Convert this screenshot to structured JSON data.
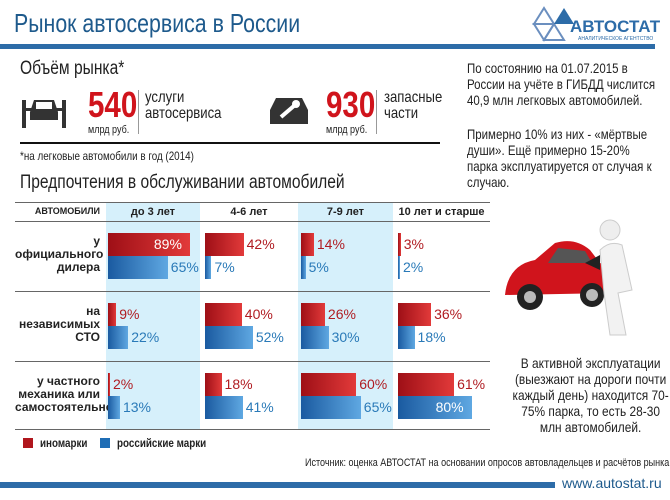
{
  "header": {
    "title": "Рынок автосервиса в России",
    "logo_name": "АВТОСТАТ",
    "logo_sub": "АНАЛИТИЧЕСКОЕ АГЕНТСТВО"
  },
  "market": {
    "title": "Объём рынка*",
    "items": [
      {
        "value": "540",
        "unit": "млрд руб.",
        "label1": "услуги",
        "label2": "автосервиса",
        "icon": "car-lift-icon"
      },
      {
        "value": "930",
        "unit": "млрд руб.",
        "label1": "запасные",
        "label2": "части",
        "icon": "car-wrench-icon"
      }
    ],
    "footnote": "*на легковые автомобили в год (2014)"
  },
  "colors": {
    "foreign": "#c0181f",
    "russian": "#1f6db5",
    "accent": "#d0141c",
    "brand": "#2d6ca8"
  },
  "chart_data": {
    "type": "bar",
    "title": "Предпочтения в обслуживании автомобилей",
    "corner_label": "АВТОМОБИЛИ",
    "columns": [
      "до 3 лет",
      "4-6 лет",
      "7-9 лет",
      "10 лет и старше"
    ],
    "rows": [
      "у официального дилера",
      "на независимых СТО",
      "у частного механика или самостоятельно"
    ],
    "series": [
      {
        "name": "иномарки",
        "values": [
          [
            89,
            42,
            14,
            3
          ],
          [
            9,
            40,
            26,
            36
          ],
          [
            2,
            18,
            60,
            61
          ]
        ]
      },
      {
        "name": "российские марки",
        "values": [
          [
            65,
            7,
            5,
            2
          ],
          [
            22,
            52,
            30,
            18
          ],
          [
            13,
            41,
            65,
            80
          ]
        ]
      }
    ],
    "unit": "%",
    "xlim": [
      0,
      100
    ],
    "legend": "bottom-left"
  },
  "notes": {
    "p1": "По состоянию на 01.07.2015 в России на учёте в ГИБДД числится 40,9 млн легковых автомобилей.",
    "p2": "Примерно 10% из них - «мёртвые души».  Ещё примерно 15-20% парка эксплуатируется от случая к случаю.",
    "p3": "В активной эксплуатации (выезжают на дороги почти каждый день) находится 70-75% парка, то есть 28-30 млн автомобилей."
  },
  "footer": {
    "source": "Источник:  оценка АВТОСТАТ на основании опросов автовладельцев и расчётов рынка",
    "url": "www.autostat.ru"
  }
}
